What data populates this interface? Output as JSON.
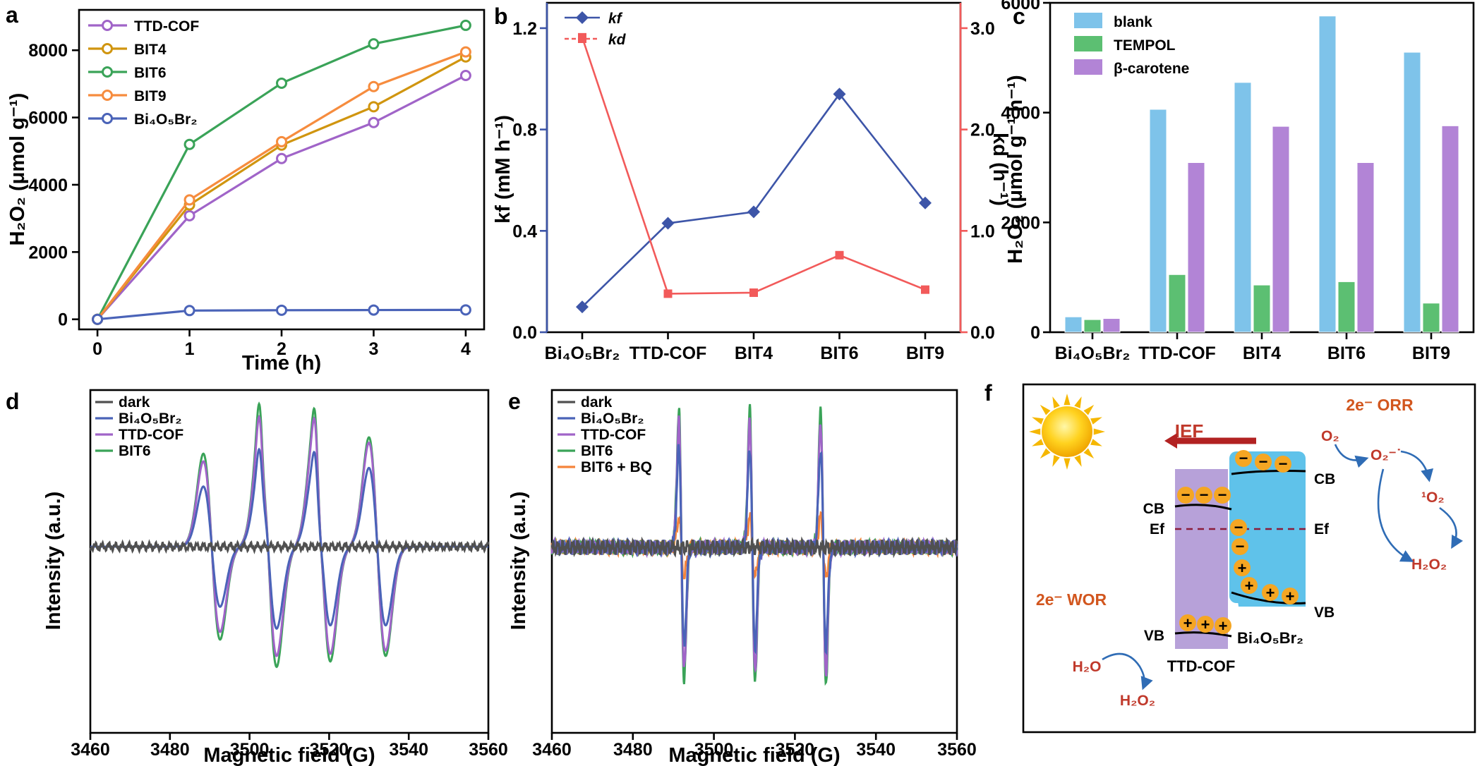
{
  "colors": {
    "TTD-COF": "#a064c8",
    "BIT4": "#d0950f",
    "BIT6": "#3aa358",
    "BIT9": "#f68c3e",
    "Bi4O5Br2": "#4a63b8",
    "dark": "#505050",
    "BIT6 + BQ": "#f5843a",
    "kf": "#3d55a8",
    "kd": "#f25a5a",
    "blank": "#7ec3ea",
    "TEMPOL": "#5cbf72",
    "beta": "#b284d6"
  },
  "panels": {
    "a": {
      "label": "a"
    },
    "b": {
      "label": "b"
    },
    "c": {
      "label": "c"
    },
    "d": {
      "label": "d"
    },
    "e": {
      "label": "e"
    },
    "f": {
      "label": "f"
    }
  },
  "chart_data": [
    {
      "id": "a",
      "type": "line",
      "title": "",
      "xlabel": "Time (h)",
      "ylabel": "H₂O₂ (μmol g⁻¹)",
      "x": [
        0,
        1,
        2,
        3,
        4
      ],
      "xticks": [
        "0",
        "1",
        "2",
        "3",
        "4"
      ],
      "xlim": [
        -0.2,
        4.2
      ],
      "ylim": [
        -300,
        9200
      ],
      "yticks": [
        0,
        2000,
        4000,
        6000,
        8000
      ],
      "legend_position": "top-left",
      "series": [
        {
          "name": "TTD-COF",
          "color": "#a064c8",
          "values": [
            0,
            3080,
            4780,
            5850,
            7250
          ]
        },
        {
          "name": "BIT4",
          "color": "#d0950f",
          "values": [
            0,
            3400,
            5180,
            6320,
            7800
          ]
        },
        {
          "name": "BIT6",
          "color": "#3aa358",
          "values": [
            0,
            5200,
            7020,
            8190,
            8740
          ]
        },
        {
          "name": "BIT9",
          "color": "#f68c3e",
          "values": [
            0,
            3550,
            5280,
            6920,
            7950
          ]
        },
        {
          "name": "Bi₄O₅Br₂",
          "color": "#4a63b8",
          "values": [
            0,
            260,
            270,
            275,
            280
          ]
        }
      ]
    },
    {
      "id": "b",
      "type": "line",
      "title": "",
      "categories": [
        "Bi₄O₅Br₂",
        "TTD-COF",
        "BIT4",
        "BIT6",
        "BIT9"
      ],
      "ylabel_left": "kf (mM h⁻¹)",
      "ylabel_right": "kd (h⁻¹)",
      "ylim_left": [
        0,
        1.3
      ],
      "yticks_left": [
        "0.0",
        "0.4",
        "0.8",
        "1.2"
      ],
      "ylim_right": [
        0,
        3.25
      ],
      "yticks_right": [
        "0.0",
        "1.0",
        "2.0",
        "3.0"
      ],
      "legend_position": "top-left",
      "series": [
        {
          "name": "kf",
          "axis": "left",
          "marker": "diamond",
          "color": "#3d55a8",
          "values": [
            0.1,
            0.43,
            0.475,
            0.94,
            0.51
          ]
        },
        {
          "name": "kd",
          "axis": "right",
          "marker": "square",
          "dashed_legend": true,
          "color": "#f25a5a",
          "values": [
            2.91,
            0.38,
            0.39,
            0.76,
            0.42
          ]
        }
      ]
    },
    {
      "id": "c",
      "type": "bar",
      "title": "",
      "categories": [
        "Bi₄O₅Br₂",
        "TTD-COF",
        "BIT4",
        "BIT6",
        "BIT9"
      ],
      "ylabel": "H₂O₂ (μmol g⁻¹ h⁻¹)",
      "ylim": [
        0,
        6000
      ],
      "yticks": [
        0,
        2000,
        4000,
        6000
      ],
      "legend_position": "top-left",
      "series": [
        {
          "name": "blank",
          "color": "#7ec3ea",
          "values": [
            280,
            4060,
            4550,
            5760,
            5100
          ]
        },
        {
          "name": "TEMPOL",
          "color": "#5cbf72",
          "values": [
            230,
            1050,
            860,
            920,
            530
          ]
        },
        {
          "name": "β-carotene",
          "color": "#b284d6",
          "values": [
            250,
            3090,
            3750,
            3090,
            3760
          ]
        }
      ]
    },
    {
      "id": "d",
      "type": "line",
      "title": "",
      "xlabel": "Magnetic field (G)",
      "ylabel": "Intensity (a.u.)",
      "xlim": [
        3460,
        3560
      ],
      "xticks": [
        "3460",
        "3480",
        "3500",
        "3520",
        "3540",
        "3560"
      ],
      "legend_position": "top-left",
      "peak_centers_G": [
        3490.5,
        3504.7,
        3518.2,
        3532.1
      ],
      "small_peak_centers_G": [
        3503.0,
        3517.0
      ],
      "series": [
        {
          "name": "dark",
          "color": "#505050",
          "relative_amplitude": 0.0
        },
        {
          "name": "Bi₄O₅Br₂",
          "color": "#4a63b8",
          "relative_amplitude": [
            0.55,
            0.75,
            0.72,
            0.72
          ]
        },
        {
          "name": "TTD-COF",
          "color": "#a064c8",
          "relative_amplitude": [
            0.78,
            1.0,
            0.98,
            0.95
          ]
        },
        {
          "name": "BIT6",
          "color": "#3aa358",
          "relative_amplitude": [
            0.85,
            1.1,
            1.05,
            1.0
          ]
        }
      ]
    },
    {
      "id": "e",
      "type": "line",
      "title": "",
      "xlabel": "Magnetic field (G)",
      "ylabel": "Intensity (a.u.)",
      "xlim": [
        3460,
        3560
      ],
      "xticks": [
        "3460",
        "3480",
        "3500",
        "3520",
        "3540",
        "3560"
      ],
      "legend_position": "top-left",
      "peak_centers_G": [
        3492.0,
        3509.5,
        3527.0
      ],
      "series": [
        {
          "name": "dark",
          "color": "#505050",
          "relative_amplitude": 0.0
        },
        {
          "name": "Bi₄O₅Br₂",
          "color": "#4a63b8",
          "relative_amplitude": 0.65
        },
        {
          "name": "TTD-COF",
          "color": "#a064c8",
          "relative_amplitude": 0.82
        },
        {
          "name": "BIT6",
          "color": "#3aa358",
          "relative_amplitude": 0.9
        },
        {
          "name": "BIT6 + BQ",
          "color": "#f5843a",
          "relative_amplitude": 0.2
        }
      ]
    }
  ],
  "scheme": {
    "ief": "IEF",
    "orr": "2e⁻ ORR",
    "wor": "2e⁻ WOR",
    "o2": "O₂",
    "o2_radical": "O₂⁻˙",
    "singlet_o2": "¹O₂",
    "h2o2_right": "H₂O₂",
    "h2o": "H₂O",
    "h2o2_left": "H₂O₂",
    "cb_left": "CB",
    "cb_right": "CB",
    "ef_left": "Ef",
    "ef_right": "Ef",
    "vb_left": "VB",
    "vb_right": "VB",
    "material_left": "TTD-COF",
    "material_right": "Bi₄O₅Br₂",
    "electron_sign": "−",
    "hole_sign": "+"
  }
}
